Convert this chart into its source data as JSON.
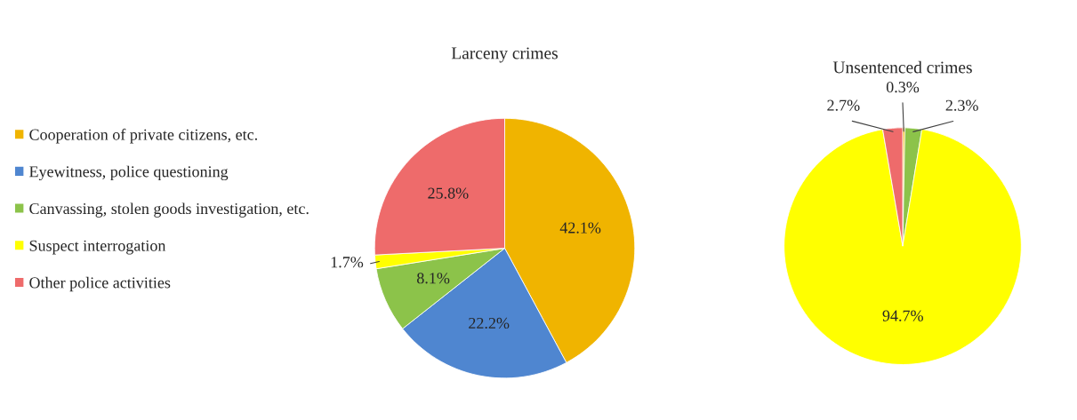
{
  "chart_data": [
    {
      "type": "pie",
      "title": "Larceny crimes",
      "categories": [
        "Cooperation of private citizens, etc.",
        "Eyewitness, police questioning",
        "Canvassing, stolen goods investigation, etc.",
        "Suspect interrogation",
        "Other police activities"
      ],
      "values": [
        42.1,
        22.2,
        8.1,
        1.7,
        25.8
      ],
      "value_labels": [
        "42.1%",
        "22.2%",
        "8.1%",
        "1.7%",
        "25.8%"
      ],
      "colors": [
        "#f0b400",
        "#4f86d0",
        "#8cc34a",
        "#ffff00",
        "#ee6b6b"
      ],
      "legend": "left"
    },
    {
      "type": "pie",
      "title": "Unsentenced crimes",
      "categories": [
        null,
        null,
        null,
        null
      ],
      "values": [
        0.3,
        2.3,
        94.7,
        2.7
      ],
      "value_labels": [
        "0.3%",
        "2.3%",
        "94.7%",
        "2.7%"
      ],
      "colors": [
        "#f0b400",
        "#8cc34a",
        "#ffff00",
        "#ee6b6b"
      ]
    }
  ]
}
